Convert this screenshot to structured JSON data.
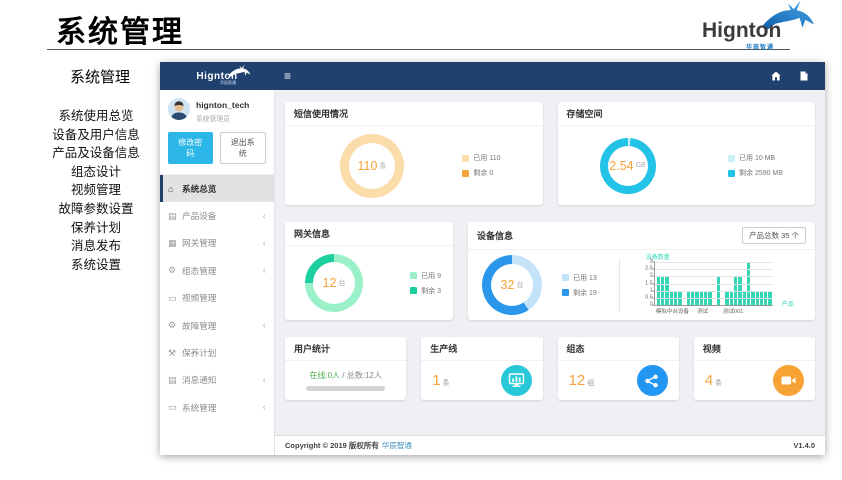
{
  "page": {
    "title": "系统管理"
  },
  "brand": {
    "name": "Hignton",
    "subtitle": "华辰智通"
  },
  "outline": {
    "heading": "系统管理",
    "items": [
      "系统使用总览",
      "设备及用户信息",
      "产品及设备信息",
      "组态设计",
      "视频管理",
      "故障参数设置",
      "保养计划",
      "消息发布",
      "系统设置"
    ]
  },
  "app": {
    "logo_text": "Hignton",
    "logo_subtitle": "华辰智通",
    "navbar": {
      "menu_icon": "≡"
    },
    "user": {
      "name": "hignton_tech",
      "role": "系统管理员"
    },
    "actions": {
      "change_password": "修改密码",
      "logout": "退出系统"
    },
    "sidebar_items": [
      {
        "label": "系统总览",
        "icon": "home-icon",
        "active": true,
        "expandable": false
      },
      {
        "label": "产品设备",
        "icon": "product-icon",
        "active": false,
        "expandable": true
      },
      {
        "label": "网关管理",
        "icon": "gateway-icon",
        "active": false,
        "expandable": true
      },
      {
        "label": "组态管理",
        "icon": "gears-icon",
        "active": false,
        "expandable": true
      },
      {
        "label": "视频管理",
        "icon": "monitor-icon",
        "active": false,
        "expandable": false
      },
      {
        "label": "故障管理",
        "icon": "gears-icon",
        "active": false,
        "expandable": true
      },
      {
        "label": "保养计划",
        "icon": "wrench-icon",
        "active": false,
        "expandable": false
      },
      {
        "label": "消息通知",
        "icon": "message-icon",
        "active": false,
        "expandable": true
      },
      {
        "label": "系统管理",
        "icon": "monitor-icon",
        "active": false,
        "expandable": true
      }
    ],
    "cards": {
      "sms": {
        "title": "短信使用情况",
        "value": "110",
        "unit": "条",
        "legend": [
          {
            "label": "已用 110",
            "color": "#fbdcab"
          },
          {
            "label": "剩余 0",
            "color": "#f0a63a"
          }
        ]
      },
      "storage": {
        "title": "存储空间",
        "value": "2.54",
        "unit": "GB",
        "legend": [
          {
            "label": "已用 10 MB",
            "color": "#c9f0f7"
          },
          {
            "label": "剩余 2590 MB",
            "color": "#22c3e6"
          }
        ]
      },
      "gateway": {
        "title": "网关信息",
        "value": "12",
        "unit": "台",
        "legend": [
          {
            "label": "已用 9",
            "color": "#9af0c8"
          },
          {
            "label": "剩余 3",
            "color": "#1dcf9f"
          }
        ]
      },
      "device": {
        "title": "设备信息",
        "value": "32",
        "unit": "台",
        "total_button": "产品总数 35 个",
        "legend": [
          {
            "label": "已用 13",
            "color": "#c4e3f9"
          },
          {
            "label": "剩余 19",
            "color": "#2a97ea"
          }
        ]
      },
      "users": {
        "title": "用户统计",
        "online": "在线:0人",
        "separator": " / ",
        "total": "总数:12人"
      },
      "production": {
        "title": "生产线",
        "value": "1",
        "unit": "条",
        "icon_color": "#29c8d8"
      },
      "config": {
        "title": "组态",
        "value": "12",
        "unit": "组",
        "icon_color": "#2196f3"
      },
      "video": {
        "title": "视频",
        "value": "4",
        "unit": "条",
        "icon_color": "#f7a234"
      }
    },
    "footer": {
      "copyright": "Copyright © 2019 版权所有",
      "company": "华辰智通",
      "version": "V1.4.0"
    }
  },
  "chart_data": [
    {
      "type": "pie",
      "title": "短信使用情况",
      "center_value": "110",
      "center_unit": "条",
      "series": [
        {
          "name": "已用",
          "value": 110,
          "color": "#fbdcab"
        },
        {
          "name": "剩余",
          "value": 0,
          "color": "#f0a63a"
        }
      ]
    },
    {
      "type": "pie",
      "title": "存储空间",
      "center_value": "2.54",
      "center_unit": "GB",
      "series": [
        {
          "name": "已用",
          "value": 10,
          "color": "#c9f0f7"
        },
        {
          "name": "剩余",
          "value": 2590,
          "color": "#22c3e6"
        }
      ]
    },
    {
      "type": "pie",
      "title": "网关信息",
      "center_value": "12",
      "center_unit": "台",
      "series": [
        {
          "name": "已用",
          "value": 9,
          "color": "#9af0c8"
        },
        {
          "name": "剩余",
          "value": 3,
          "color": "#1dcf9f"
        }
      ]
    },
    {
      "type": "pie",
      "title": "设备信息",
      "center_value": "32",
      "center_unit": "台",
      "series": [
        {
          "name": "已用",
          "value": 13,
          "color": "#c4e3f9"
        },
        {
          "name": "剩余",
          "value": 19,
          "color": "#2a97ea"
        }
      ]
    },
    {
      "type": "bar",
      "title": "设备数量",
      "ylabel": "设备数量",
      "xlabel": "产品",
      "ylim": [
        0,
        3
      ],
      "yticks": [
        3,
        2.5,
        2,
        1.5,
        1,
        0.5,
        0
      ],
      "x_tick_labels": [
        {
          "label": "模拟中台设备",
          "pos": 1
        },
        {
          "label": "测试",
          "pos": 36
        },
        {
          "label": "测试001",
          "pos": 58
        }
      ],
      "values": [
        2,
        2,
        2,
        1,
        1,
        1,
        0,
        1,
        1,
        1,
        1,
        1,
        1,
        0,
        2,
        0,
        1,
        1,
        2,
        2,
        1,
        3,
        1,
        1,
        1,
        1,
        1
      ],
      "bar_color": "#35d6b5",
      "grid": true
    }
  ]
}
